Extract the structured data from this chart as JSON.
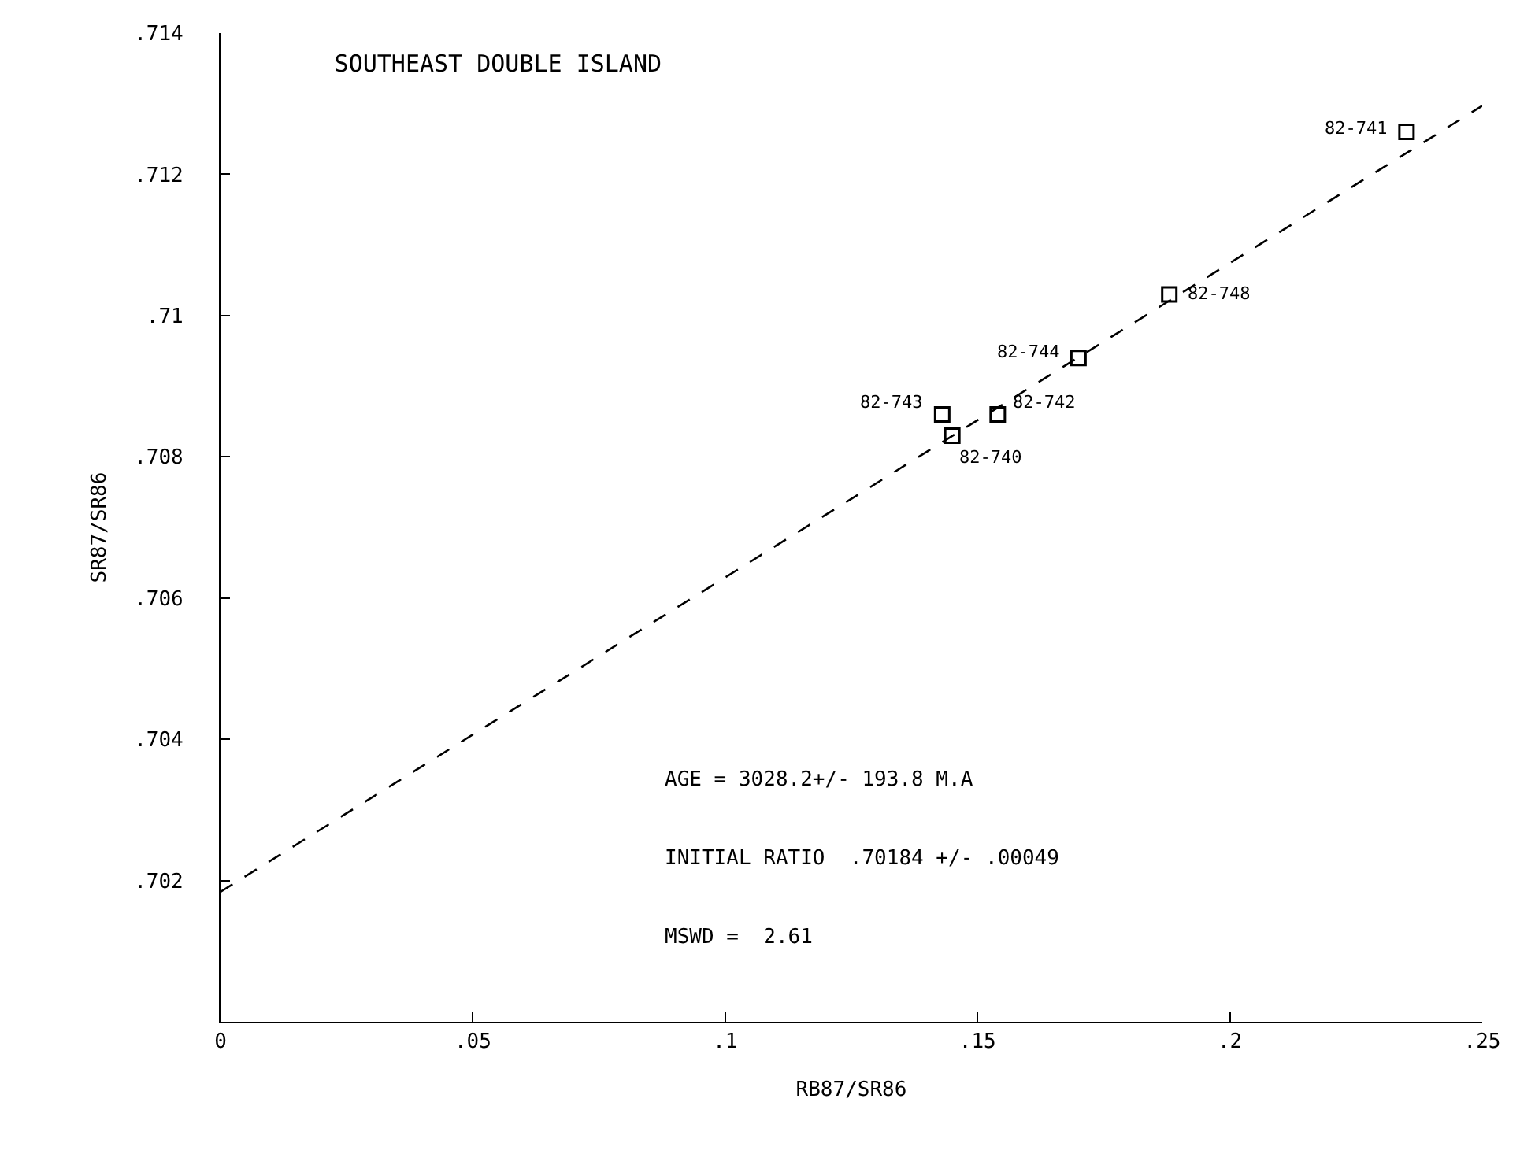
{
  "chart_data": {
    "type": "scatter",
    "title": "SOUTHEAST DOUBLE ISLAND",
    "xlabel": "RB87/SR86",
    "ylabel": "SR87/SR86",
    "xlim": [
      0,
      0.25
    ],
    "xticks": [
      {
        "value": 0,
        "label": "0"
      },
      {
        "value": 0.05,
        "label": ".05"
      },
      {
        "value": 0.1,
        "label": ".1"
      },
      {
        "value": 0.15,
        "label": ".15"
      },
      {
        "value": 0.2,
        "label": ".2"
      },
      {
        "value": 0.25,
        "label": ".25"
      }
    ],
    "ylim": [
      0.7,
      0.714
    ],
    "yticks": [
      {
        "value": 0.702,
        "label": ".702"
      },
      {
        "value": 0.704,
        "label": ".704"
      },
      {
        "value": 0.706,
        "label": ".706"
      },
      {
        "value": 0.708,
        "label": ".708"
      },
      {
        "value": 0.71,
        "label": ".71"
      },
      {
        "value": 0.712,
        "label": ".712"
      },
      {
        "value": 0.714,
        "label": ".714"
      }
    ],
    "grid": false,
    "series": [
      {
        "color": "#000000",
        "marker": "square",
        "x": [
          0.235,
          0.188,
          0.17,
          0.143,
          0.154,
          0.145
        ],
        "values": [
          0.7126,
          0.7103,
          0.7094,
          0.7086,
          0.7086,
          0.7083
        ]
      },
      {
        "type": "line",
        "color": "#000000",
        "marker": "none",
        "line_style": "dashed",
        "x": [
          0,
          0.25
        ],
        "values": [
          0.70184,
          0.71297
        ]
      }
    ],
    "annotations": [
      {
        "text": "82-741",
        "x": 0.235,
        "y": 0.7126
      },
      {
        "text": "82-748",
        "x": 0.188,
        "y": 0.7103
      },
      {
        "text": "82-744",
        "x": 0.17,
        "y": 0.7094
      },
      {
        "text": "82-743",
        "x": 0.143,
        "y": 0.7086
      },
      {
        "text": "82-742",
        "x": 0.154,
        "y": 0.7086
      },
      {
        "text": "82-740",
        "x": 0.145,
        "y": 0.7083
      },
      "AGE = 3028.2+/- 193.8 M.A",
      "INITIAL RATIO  .70184 +/- .00049",
      "MSWD =  2.61"
    ]
  }
}
